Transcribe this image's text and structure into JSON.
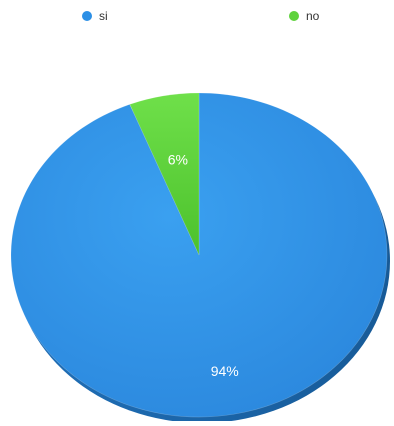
{
  "chart_data": {
    "type": "pie",
    "style": "3d",
    "legend_position": "top",
    "slices": [
      {
        "label": "si",
        "value": 94,
        "display": "94%",
        "color": "#2b8fe6"
      },
      {
        "label": "no",
        "value": 6,
        "display": "6%",
        "color": "#5ed23c"
      }
    ]
  }
}
